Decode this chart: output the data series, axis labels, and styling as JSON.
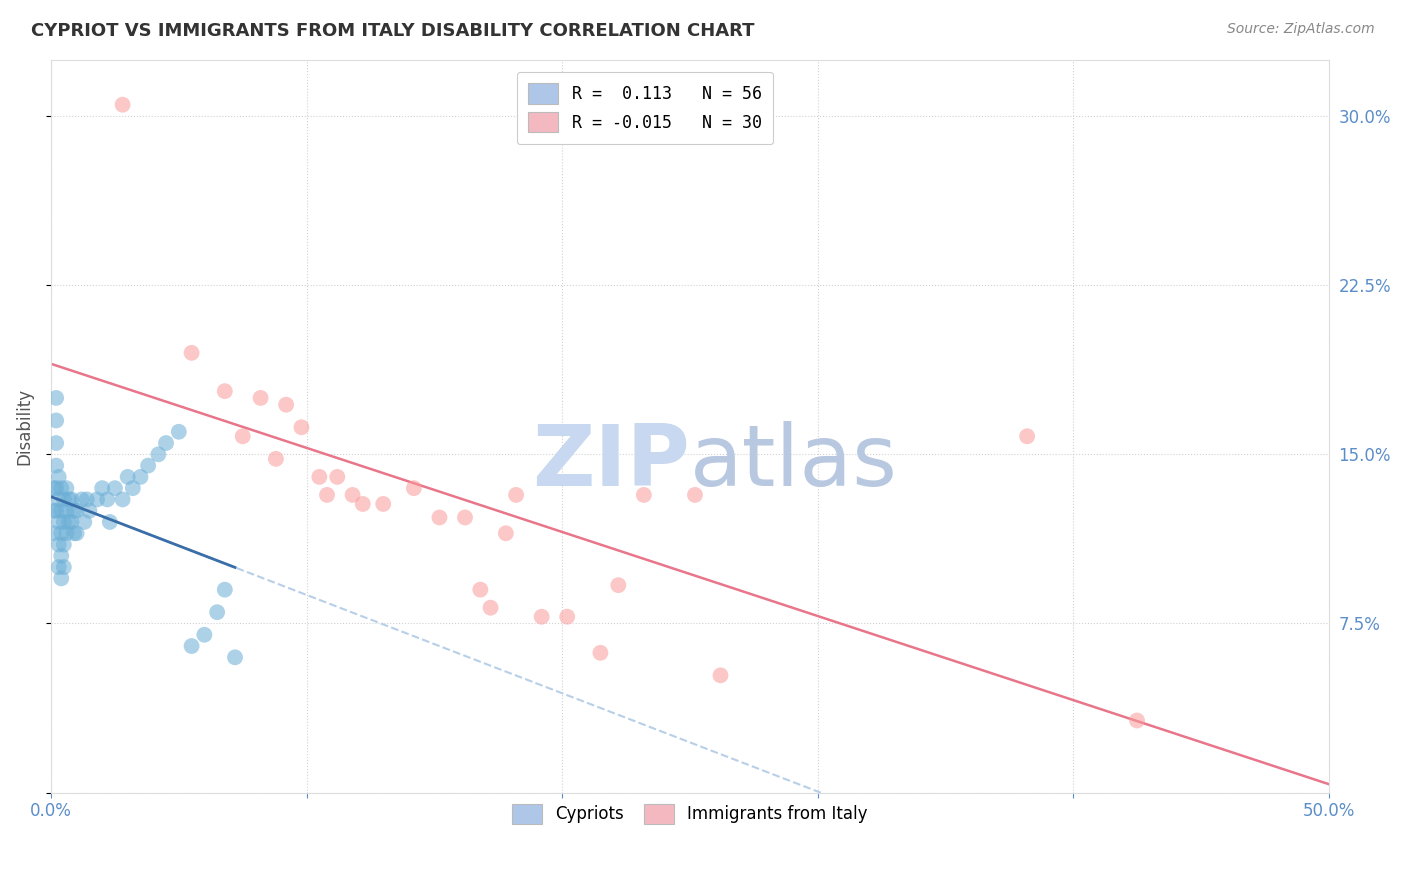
{
  "title": "CYPRIOT VS IMMIGRANTS FROM ITALY DISABILITY CORRELATION CHART",
  "source": "Source: ZipAtlas.com",
  "ylabel": "Disability",
  "x_min": 0.0,
  "x_max": 0.5,
  "y_min": 0.0,
  "y_max": 0.325,
  "x_ticks": [
    0.0,
    0.1,
    0.2,
    0.3,
    0.4,
    0.5
  ],
  "x_tick_labels": [
    "0.0%",
    "",
    "",
    "",
    "",
    "50.0%"
  ],
  "y_ticks": [
    0.0,
    0.075,
    0.15,
    0.225,
    0.3
  ],
  "y_tick_labels_right": [
    "",
    "7.5%",
    "15.0%",
    "22.5%",
    "30.0%"
  ],
  "legend_entries": [
    {
      "label": "R =  0.113   N = 56",
      "facecolor": "#aec6e8"
    },
    {
      "label": "R = -0.015   N = 30",
      "facecolor": "#f4b8c1"
    }
  ],
  "blue_scatter_x": [
    0.001,
    0.001,
    0.001,
    0.002,
    0.002,
    0.002,
    0.002,
    0.002,
    0.002,
    0.003,
    0.003,
    0.003,
    0.003,
    0.003,
    0.004,
    0.004,
    0.004,
    0.004,
    0.004,
    0.005,
    0.005,
    0.005,
    0.005,
    0.006,
    0.006,
    0.006,
    0.007,
    0.007,
    0.008,
    0.008,
    0.009,
    0.009,
    0.01,
    0.01,
    0.012,
    0.013,
    0.014,
    0.015,
    0.018,
    0.02,
    0.022,
    0.023,
    0.025,
    0.028,
    0.03,
    0.032,
    0.035,
    0.038,
    0.042,
    0.045,
    0.05,
    0.055,
    0.06,
    0.065,
    0.068,
    0.072
  ],
  "blue_scatter_y": [
    0.135,
    0.125,
    0.115,
    0.175,
    0.165,
    0.155,
    0.145,
    0.135,
    0.125,
    0.14,
    0.13,
    0.12,
    0.11,
    0.1,
    0.135,
    0.125,
    0.115,
    0.105,
    0.095,
    0.13,
    0.12,
    0.11,
    0.1,
    0.135,
    0.125,
    0.115,
    0.13,
    0.12,
    0.13,
    0.12,
    0.125,
    0.115,
    0.125,
    0.115,
    0.13,
    0.12,
    0.13,
    0.125,
    0.13,
    0.135,
    0.13,
    0.12,
    0.135,
    0.13,
    0.14,
    0.135,
    0.14,
    0.145,
    0.15,
    0.155,
    0.16,
    0.065,
    0.07,
    0.08,
    0.09,
    0.06
  ],
  "pink_scatter_x": [
    0.028,
    0.055,
    0.068,
    0.075,
    0.082,
    0.088,
    0.092,
    0.098,
    0.105,
    0.108,
    0.112,
    0.118,
    0.122,
    0.13,
    0.142,
    0.152,
    0.162,
    0.168,
    0.172,
    0.178,
    0.182,
    0.192,
    0.202,
    0.215,
    0.222,
    0.232,
    0.252,
    0.262,
    0.382,
    0.425
  ],
  "pink_scatter_y": [
    0.305,
    0.195,
    0.178,
    0.158,
    0.175,
    0.148,
    0.172,
    0.162,
    0.14,
    0.132,
    0.14,
    0.132,
    0.128,
    0.128,
    0.135,
    0.122,
    0.122,
    0.09,
    0.082,
    0.115,
    0.132,
    0.078,
    0.078,
    0.062,
    0.092,
    0.132,
    0.132,
    0.052,
    0.158,
    0.032
  ],
  "blue_scatter_color": "#6baed6",
  "pink_scatter_color": "#fb9a99",
  "blue_trend_color": "#6baed6",
  "pink_trend_color": "#e8758a",
  "dashed_trend_color": "#b8cfe8",
  "background_color": "#ffffff",
  "grid_color": "#cccccc",
  "axis_color": "#5b8ec9",
  "title_color": "#333333",
  "watermark_zip_color": "#c8d8f0",
  "watermark_atlas_color": "#b8c8e0"
}
